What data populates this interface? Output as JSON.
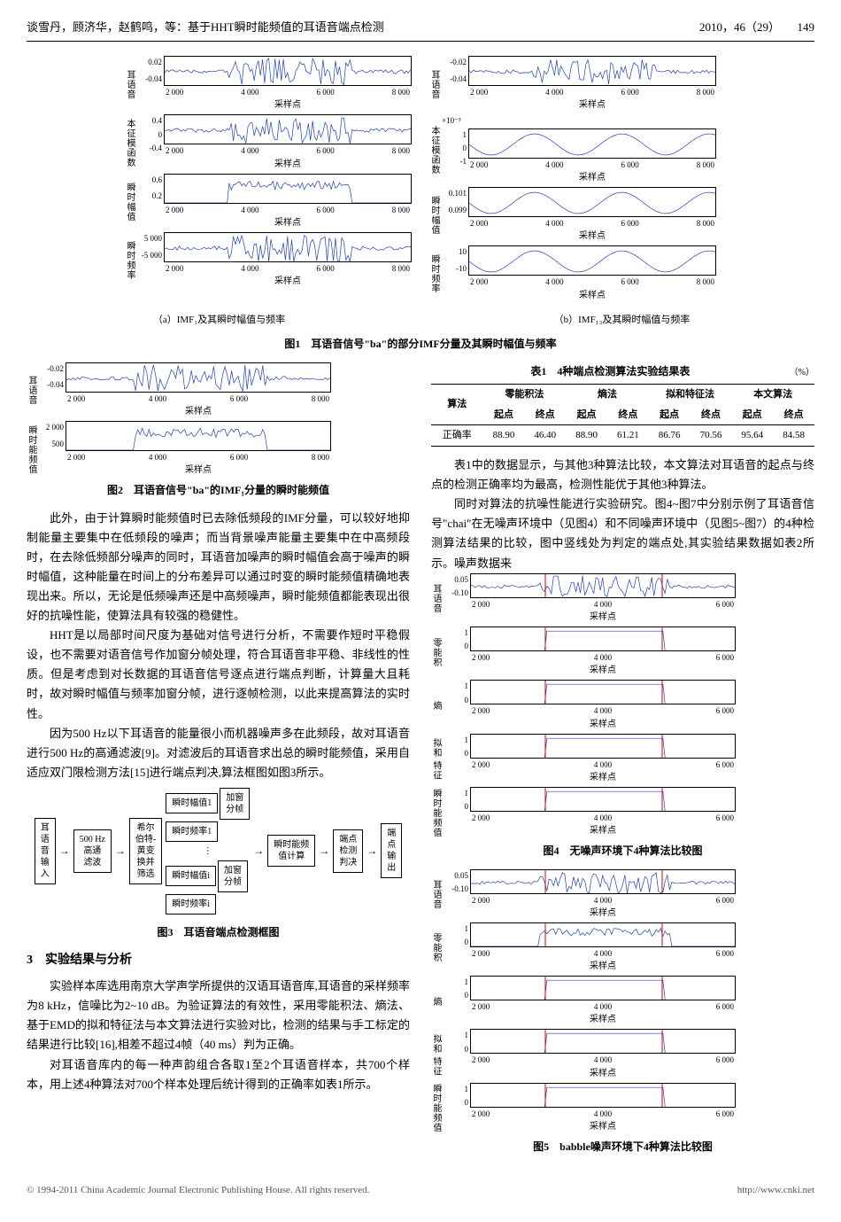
{
  "header": {
    "left": "谈雪丹，顾济华，赵鹤鸣，等：基于HHT瞬时能频值的耳语音端点检测",
    "issue": "2010，46（29）",
    "page": "149"
  },
  "fig1": {
    "left_sub_caption": "（a）IMF₁及其瞬时幅值与频率",
    "right_sub_caption": "（b）IMF₁₃及其瞬时幅值与频率",
    "caption": "图1　耳语音信号\"ba\"的部分IMF分量及其瞬时幅值与频率",
    "xlabel": "采样点",
    "xticks": [
      "2 000",
      "4 000",
      "6 000",
      "8 000"
    ],
    "rows_left": [
      {
        "yl": "耳语音",
        "yt": [
          "0.02",
          "-0.04"
        ]
      },
      {
        "yl": "本征模函数",
        "yt": [
          "0.4",
          "0",
          "-0.4"
        ]
      },
      {
        "yl": "瞬时幅值",
        "yt": [
          "0.6",
          "0.2"
        ]
      },
      {
        "yl": "瞬时频率",
        "yt": [
          "5 000",
          "-5 000"
        ]
      }
    ],
    "rows_right": [
      {
        "yl": "耳语音",
        "yt": [
          "-0.02",
          "-0.04"
        ]
      },
      {
        "yl": "本征模函数",
        "yt_pre": "×10⁻³",
        "yt": [
          "1",
          "0",
          "-1"
        ]
      },
      {
        "yl": "瞬时幅值",
        "yt": [
          "0.101",
          "",
          "0.099"
        ]
      },
      {
        "yl": "瞬时频率",
        "yt": [
          "10",
          "-10"
        ]
      }
    ]
  },
  "fig2": {
    "caption": "图2　耳语音信号\"ba\"的IMF₁分量的瞬时能频值",
    "xlabel": "采样点",
    "xticks": [
      "2 000",
      "4 000",
      "6 000",
      "8 000"
    ],
    "rows": [
      {
        "yl": "耳语音",
        "yt": [
          "-0.02",
          "-0.04"
        ]
      },
      {
        "yl": "瞬时能频值",
        "yt": [
          "2 000",
          "500"
        ]
      }
    ]
  },
  "para": {
    "p1": "此外，由于计算瞬时能频值时已去除低频段的IMF分量，可以较好地抑制能量主要集中在低频段的噪声；而当背景噪声能量主要集中在中高频段时，在去除低频部分噪声的同时，耳语音加噪声的瞬时幅值会高于噪声的瞬时幅值，这种能量在时间上的分布差异可以通过时变的瞬时能频值精确地表现出来。所以，无论是低频噪声还是中高频噪声，瞬时能频值都能表现出很好的抗噪性能，使算法具有较强的稳健性。",
    "p2": "HHT是以局部时间尺度为基础对信号进行分析，不需要作短时平稳假设，也不需要对语音信号作加窗分帧处理，符合耳语音非平稳、非线性的性质。但是考虑到对长数据的耳语音信号逐点进行端点判断，计算量大且耗时，故对瞬时幅值与频率加窗分帧，进行逐帧检测，以此来提高算法的实时性。",
    "p3": "因为500 Hz以下耳语音的能量很小而机器噪声多在此频段，故对耳语音进行500 Hz的高通滤波[9]。对滤波后的耳语音求出总的瞬时能频值，采用自适应双门限检测方法[15]进行端点判决,算法框图如图3所示。",
    "p4": "表1中的数据显示，与其他3种算法比较，本文算法对耳语音的起点与终点的检测正确率均为最高，检测性能优于其他3种算法。",
    "p5": "同时对算法的抗噪性能进行实验研究。图4~图7中分别示例了耳语音信号\"chai\"在无噪声环境中（见图4）和不同噪声环境中（见图5~图7）的4种检测算法结果的比较，图中竖线处为判定的端点处,其实验结果数据如表2所示。噪声数据来"
  },
  "fig3": {
    "caption": "图3　耳语音端点检测框图",
    "b_in": "耳\n语\n音\n输\n入",
    "b_hp": "500 Hz\n高通\n滤波",
    "b_hht": "希尔\n伯特-\n黄变\n换并\n筛选",
    "b_amp1": "瞬时幅值1",
    "b_frq1": "瞬时频率1",
    "b_dots": "⋮",
    "b_ampi": "瞬时幅值i",
    "b_frqi": "瞬时频率i",
    "b_win": "加窗\n分帧",
    "b_calc": "瞬时能频\n值计算",
    "b_det": "端点\n检测\n判决",
    "b_out": "端\n点\n输\n出"
  },
  "sec3_title": "3　实验结果与分析",
  "sec3_p1": "实验样本库选用南京大学声学所提供的汉语耳语音库,耳语音的采样频率为8 kHz，信噪比为2~10 dB。为验证算法的有效性，采用零能积法、熵法、基于EMD的拟和特征法与本文算法进行实验对比，检测的结果与手工标定的结果进行比较[16],相差不超过4帧（40 ms）判为正确。",
  "sec3_p2": "对耳语音库内的每一种声韵组合各取1至2个耳语音样本，共700个样本，用上述4种算法对700个样本处理后统计得到的正确率如表1所示。",
  "table1": {
    "title": "表1　4种端点检测算法实验结果表",
    "unit": "（%）",
    "col_group": [
      "算法",
      "零能积法",
      "熵法",
      "拟和特征法",
      "本文算法"
    ],
    "sub_cols": [
      "起点",
      "终点",
      "起点",
      "终点",
      "起点",
      "终点",
      "起点",
      "终点"
    ],
    "row_label": "正确率",
    "values": [
      "88.90",
      "46.40",
      "88.90",
      "61.21",
      "86.76",
      "70.56",
      "95.64",
      "84.58"
    ]
  },
  "fig4": {
    "caption": "图4　无噪声环境下4种算法比较图",
    "xlabel": "采样点",
    "xticks": [
      "2 000",
      "4 000",
      "6 000"
    ],
    "rows": [
      {
        "yl": "耳语音",
        "yt": [
          "0.05",
          "-0.10"
        ]
      },
      {
        "yl": "零能积",
        "yt": [
          "1",
          "0"
        ]
      },
      {
        "yl": "熵",
        "yt": [
          "1",
          "0"
        ]
      },
      {
        "yl": "拟和\n特征",
        "yt": [
          "1",
          "0"
        ]
      },
      {
        "yl": "瞬时能频值",
        "yt": [
          "1",
          "0"
        ]
      }
    ]
  },
  "fig5": {
    "caption": "图5　babble噪声环境下4种算法比较图",
    "xlabel": "采样点",
    "xticks": [
      "2 000",
      "4 000",
      "6 000"
    ],
    "rows": [
      {
        "yl": "耳语音",
        "yt": [
          "0.05",
          "-0.10"
        ]
      },
      {
        "yl": "零能积",
        "yt": [
          "1",
          "0"
        ]
      },
      {
        "yl": "熵",
        "yt": [
          "1",
          "0"
        ]
      },
      {
        "yl": "拟和\n特征",
        "yt": [
          "1",
          "0"
        ]
      },
      {
        "yl": "瞬时能频值",
        "yt": [
          "1",
          "0"
        ]
      }
    ]
  },
  "footer": {
    "left": "© 1994-2011 China Academic Journal Electronic Publishing House. All rights reserved.",
    "right": "http://www.cnki.net"
  }
}
